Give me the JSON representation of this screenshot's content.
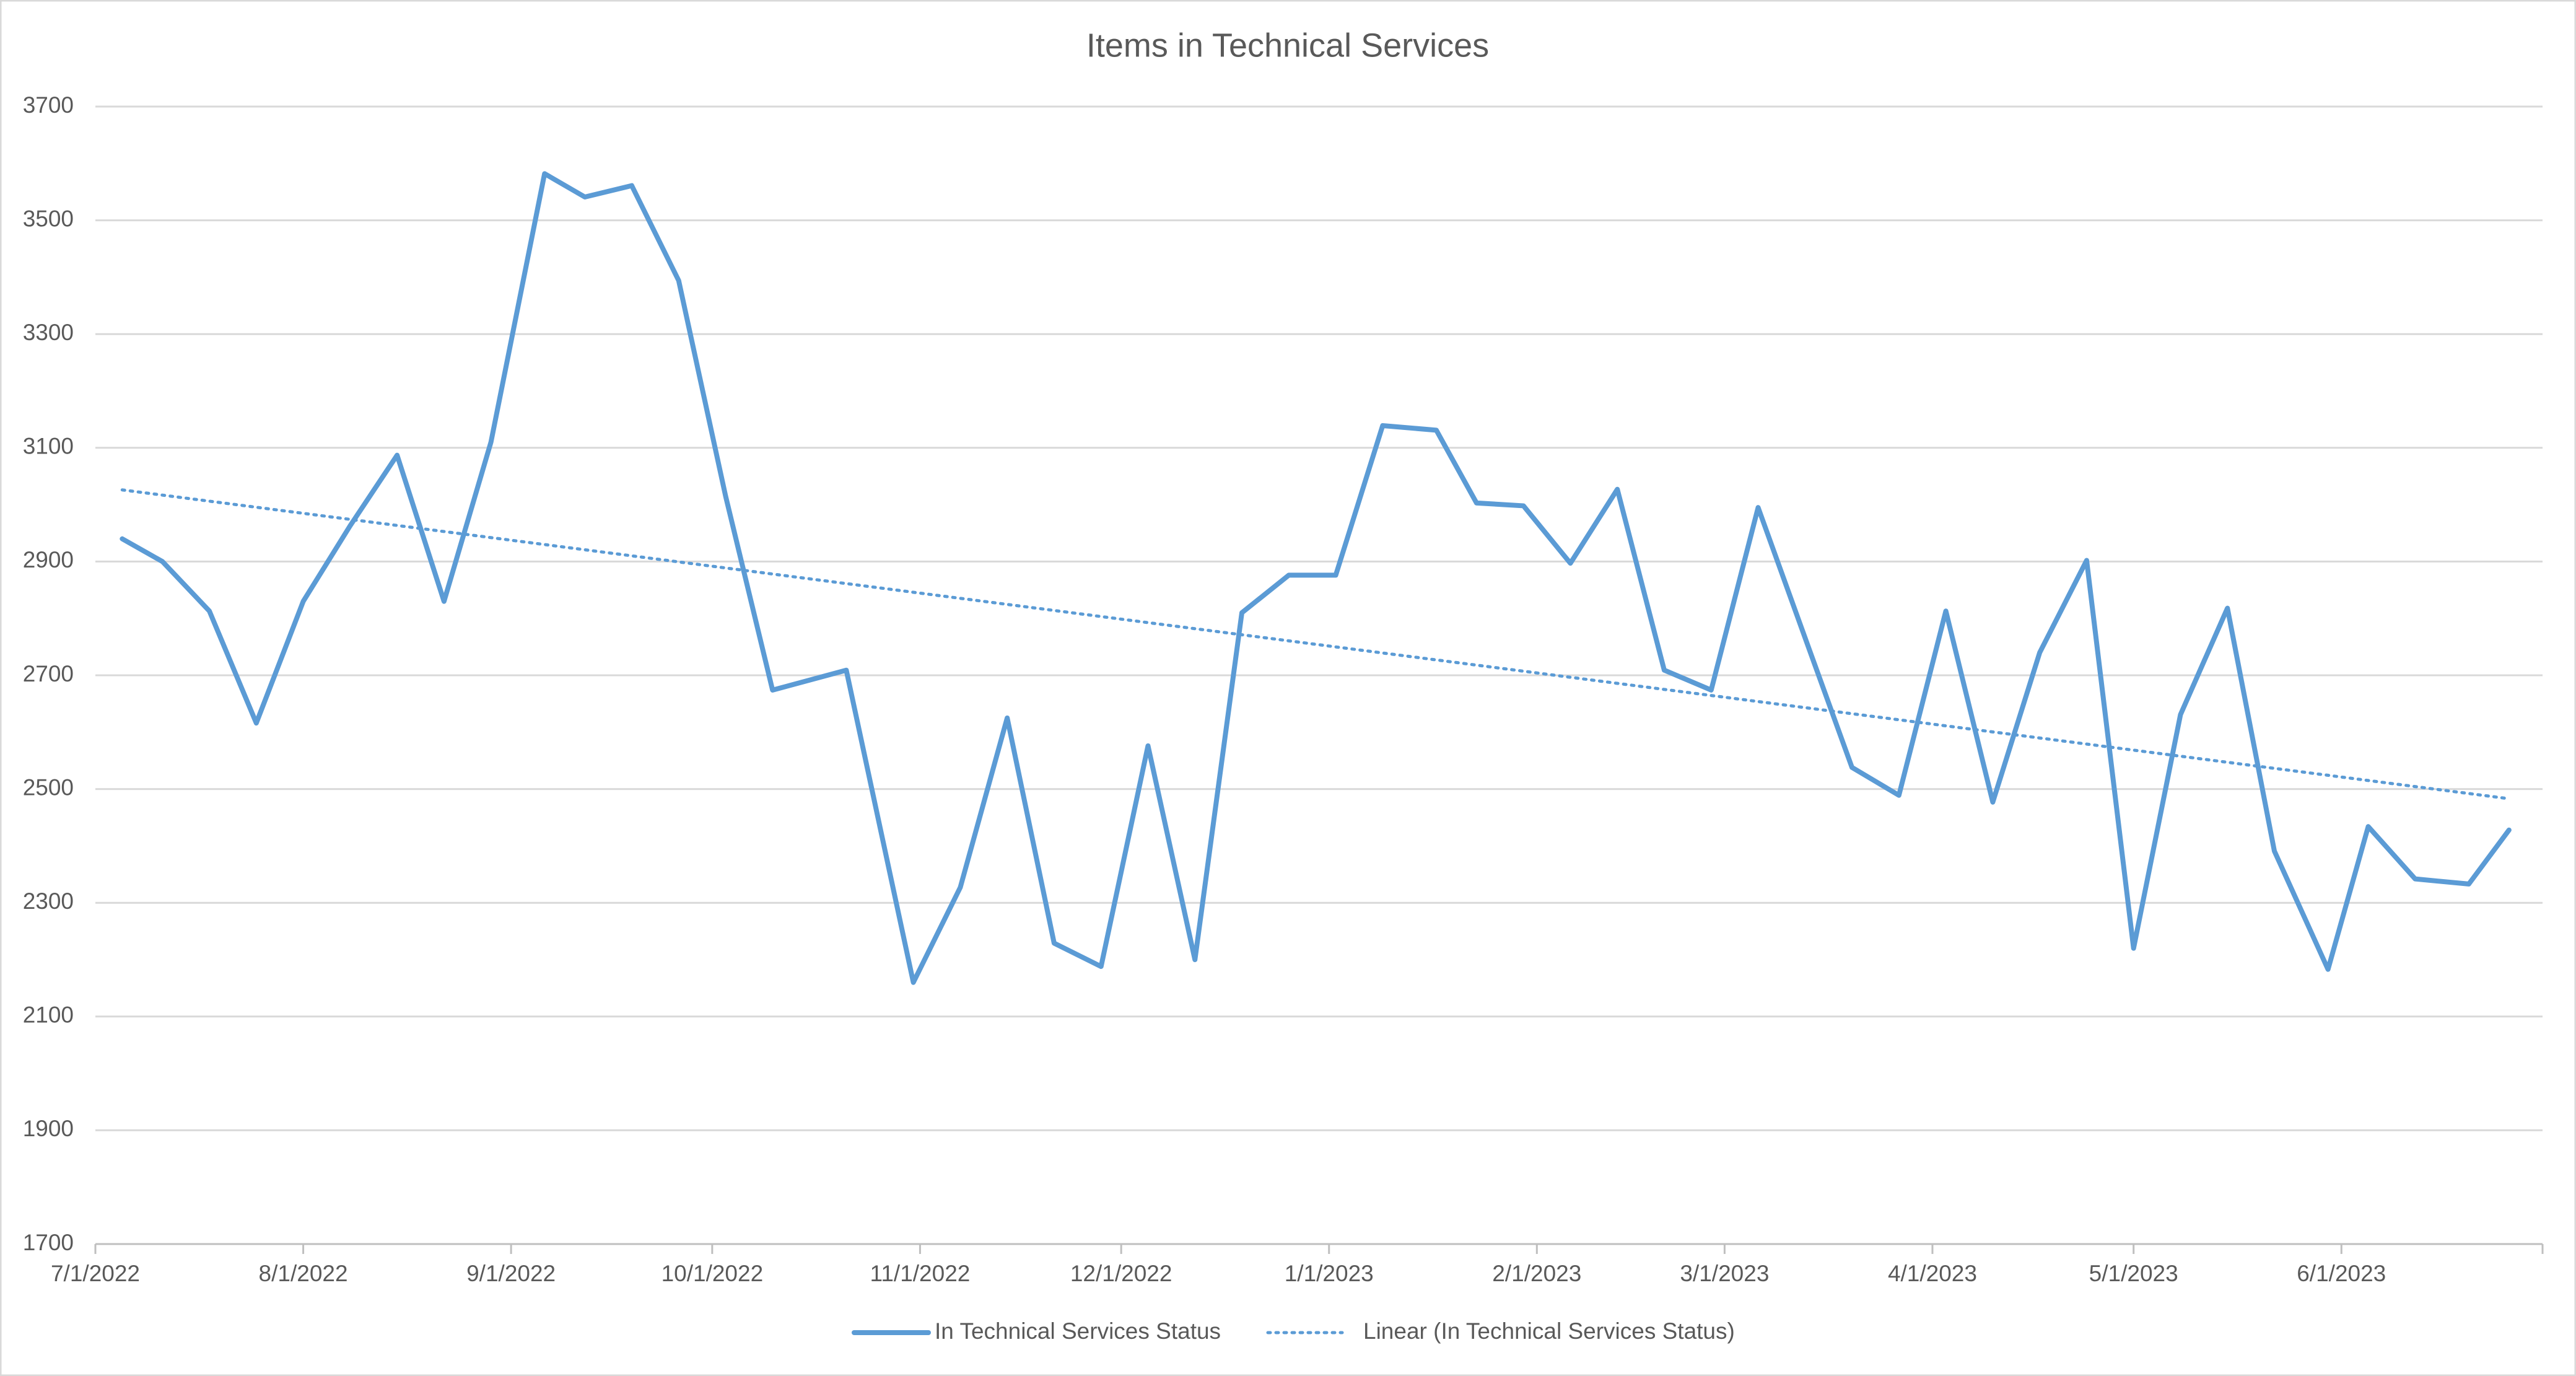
{
  "chart_data": {
    "type": "line",
    "title": "Items in Technical Services",
    "x": [
      "7/5/2022",
      "7/11/2022",
      "7/18/2022",
      "7/25/2022",
      "8/1/2022",
      "8/8/2022",
      "8/15/2022",
      "8/22/2022",
      "8/29/2022",
      "9/6/2022",
      "9/12/2022",
      "9/19/2022",
      "9/26/2022",
      "10/3/2022",
      "10/10/2022",
      "10/21/2022",
      "10/31/2022",
      "11/7/2022",
      "11/14/2022",
      "11/21/2022",
      "11/28/2022",
      "12/5/2022",
      "12/12/2022",
      "12/19/2022",
      "12/26/2022",
      "1/2/2023",
      "1/9/2023",
      "1/17/2023",
      "1/23/2023",
      "1/30/2023",
      "2/6/2023",
      "2/13/2023",
      "2/20/2023",
      "2/27/2023",
      "3/6/2023",
      "3/13/2023",
      "3/20/2023",
      "3/27/2023",
      "4/3/2023",
      "4/10/2023",
      "4/17/2023",
      "4/24/2023",
      "5/1/2023",
      "5/8/2023",
      "5/15/2023",
      "5/22/2023",
      "5/30/2023",
      "6/5/2023",
      "6/12/2023",
      "6/20/2023",
      "6/26/2023"
    ],
    "series": [
      {
        "name": "In Technical Services Status",
        "color": "#5b9bd5",
        "style": "solid",
        "values": [
          2940,
          2900,
          2813,
          2616,
          2830,
          2963,
          3087,
          2830,
          3110,
          3582,
          3541,
          3561,
          3394,
          3015,
          2674,
          2709,
          2160,
          2327,
          2625,
          2229,
          2188,
          2576,
          2200,
          2810,
          2876,
          2876,
          3139,
          3131,
          3003,
          2998,
          2897,
          3027,
          2709,
          2674,
          2995,
          2766,
          2538,
          2489,
          2813,
          2477,
          2740,
          2902,
          2220,
          2631,
          2818,
          2391,
          2183,
          2434,
          2342,
          2333,
          2428
        ]
      },
      {
        "name": "Linear (In Technical Services Status)",
        "color": "#5b9bd5",
        "style": "dotted",
        "x": [
          "7/5/2022",
          "6/26/2023"
        ],
        "values": [
          3026,
          2483
        ]
      }
    ],
    "xlim": [
      "7/1/2022",
      "7/1/2023"
    ],
    "xticks": [
      "7/1/2022",
      "8/1/2022",
      "9/1/2022",
      "10/1/2022",
      "11/1/2022",
      "12/1/2022",
      "1/1/2023",
      "2/1/2023",
      "3/1/2023",
      "4/1/2023",
      "5/1/2023",
      "6/1/2023"
    ],
    "ylim": [
      1700,
      3700
    ],
    "yticks": [
      1700,
      1900,
      2100,
      2300,
      2500,
      2700,
      2900,
      3100,
      3300,
      3500,
      3700
    ],
    "grid": true,
    "legend": "bottom"
  }
}
